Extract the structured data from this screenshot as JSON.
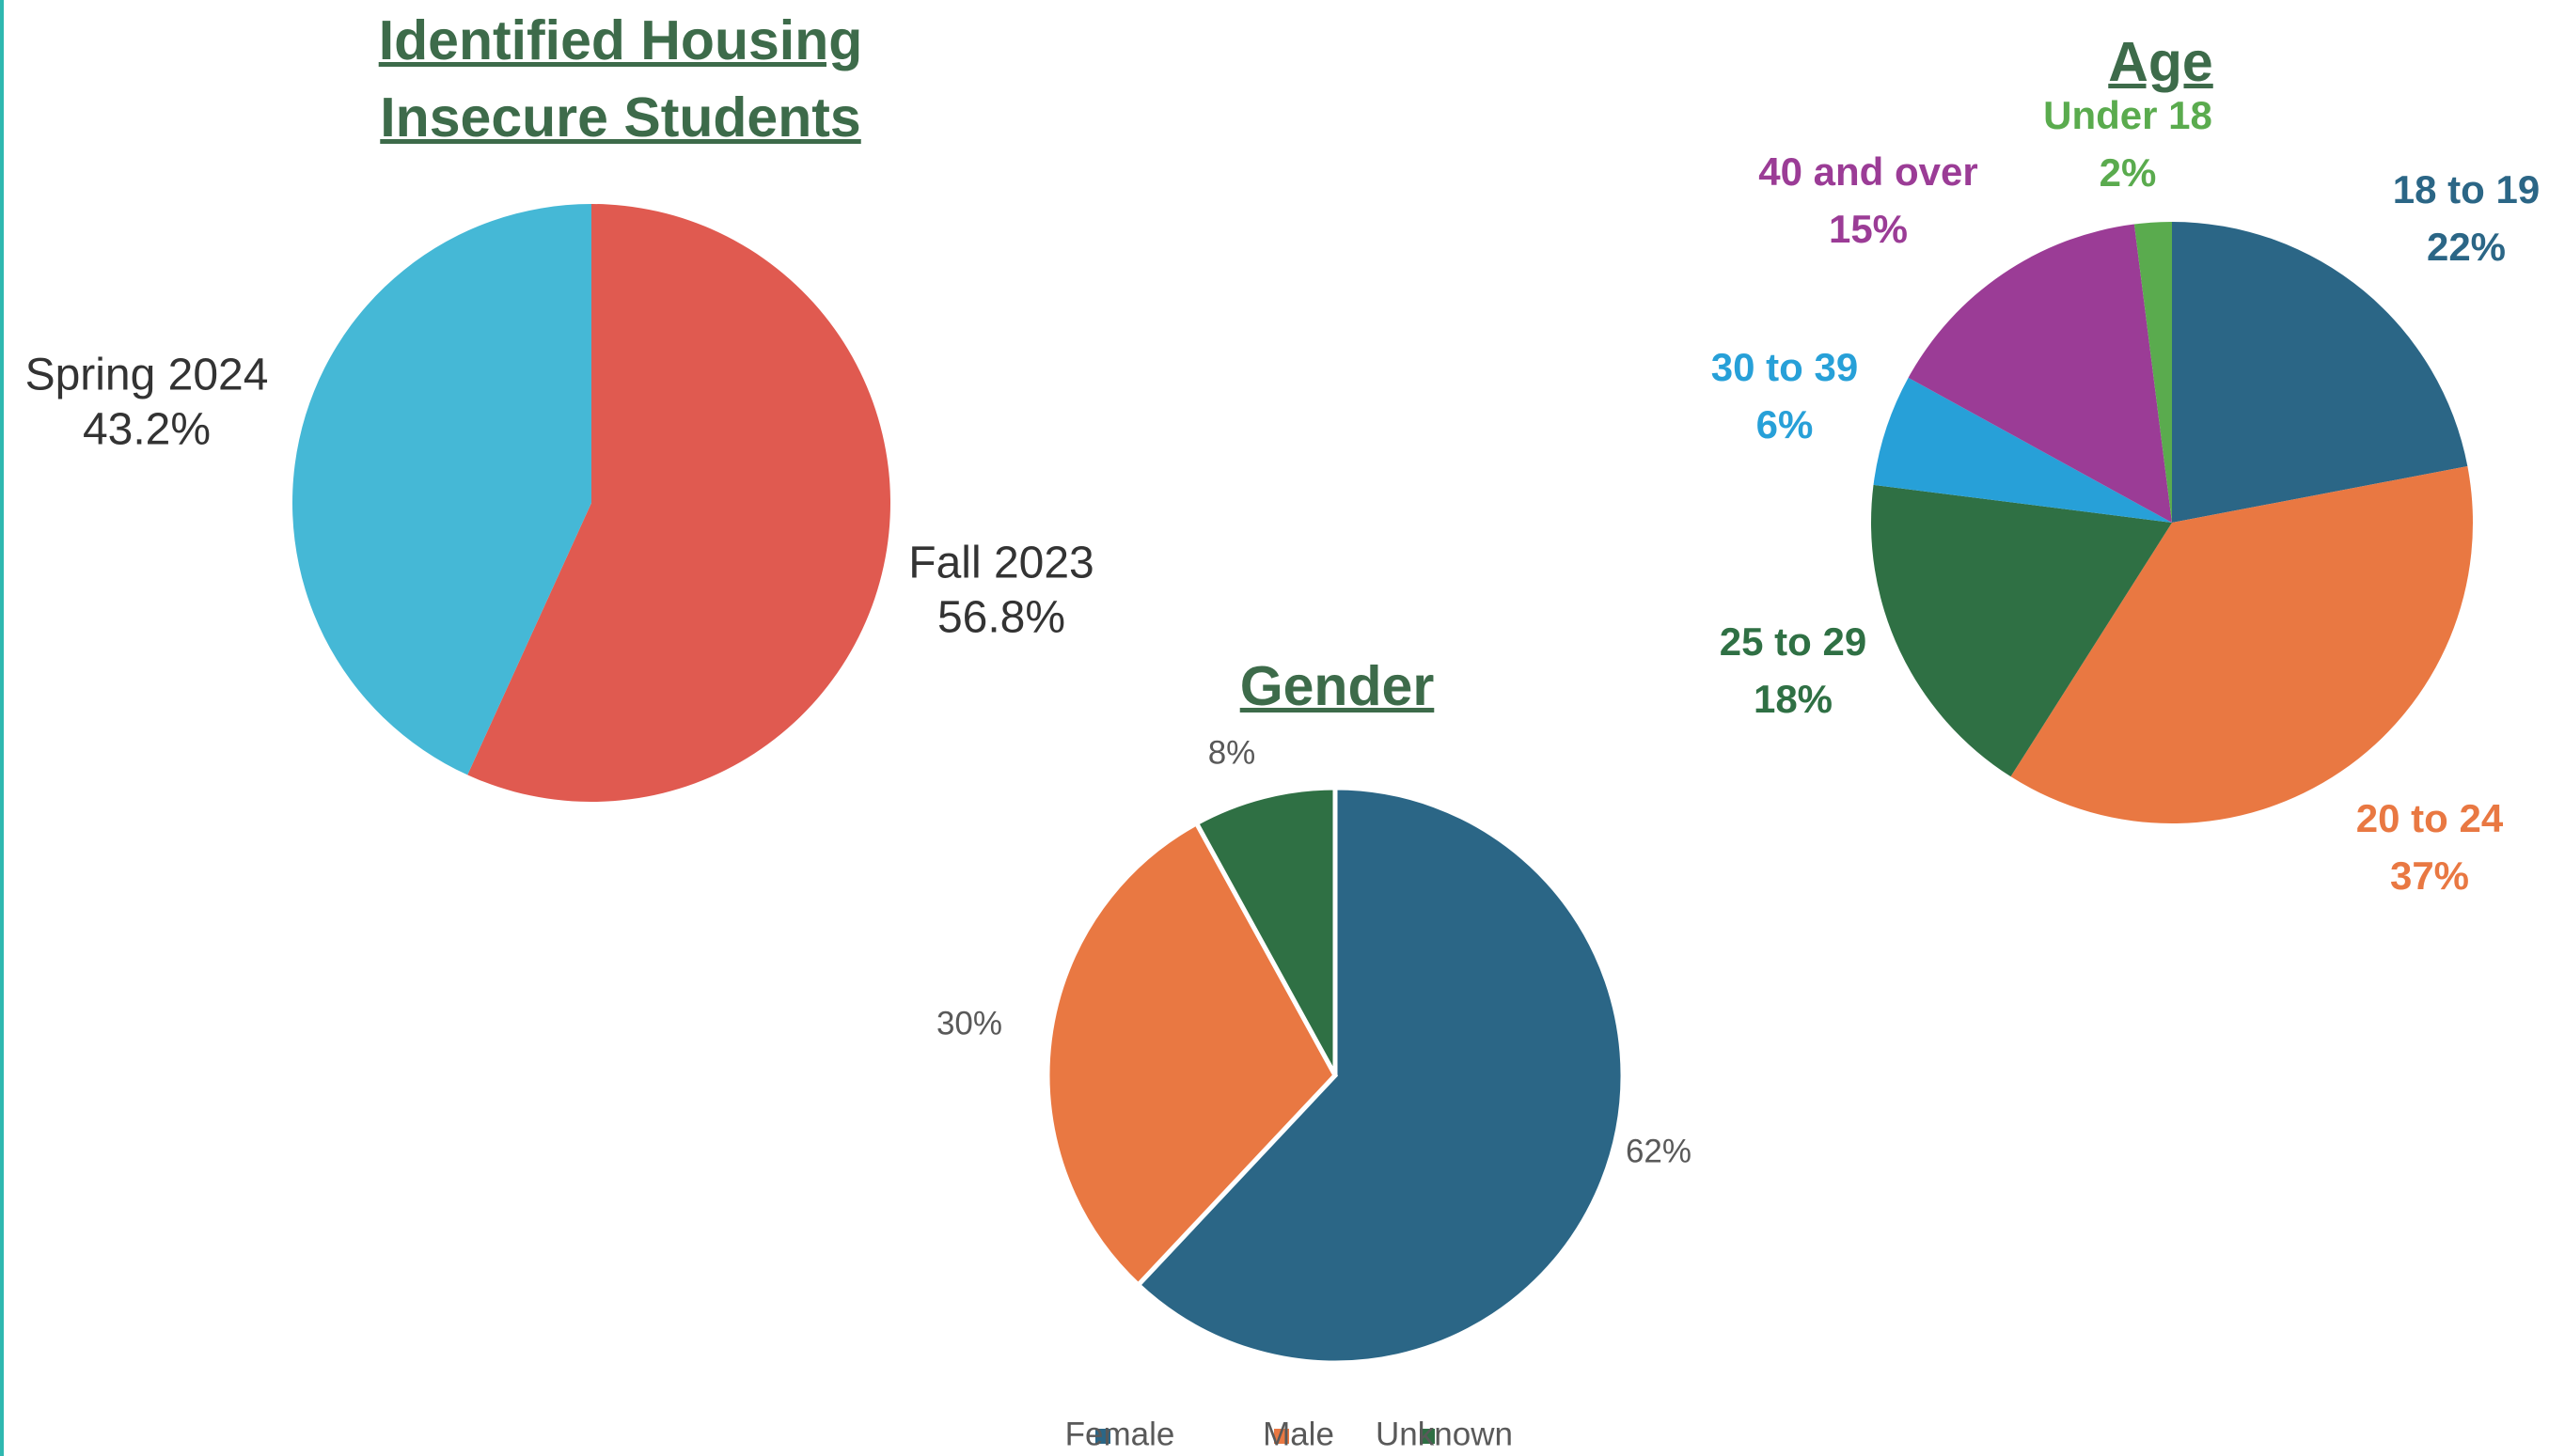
{
  "chart_data": [
    {
      "type": "pie",
      "title": "Identified Housing Insecure Students",
      "categories": [
        "Fall 2023",
        "Spring 2024"
      ],
      "values": [
        56.8,
        43.2
      ],
      "value_labels": [
        "56.8%",
        "43.2%"
      ],
      "colors": [
        "#e05a50",
        "#45b8d6"
      ],
      "legend": false
    },
    {
      "type": "pie",
      "title": "Gender",
      "categories": [
        "Female",
        "Male",
        "Unknown"
      ],
      "values": [
        62,
        30,
        8
      ],
      "value_labels": [
        "62%",
        "30%",
        "8%"
      ],
      "colors": [
        "#2b6686",
        "#e97842",
        "#2f7044"
      ],
      "legend": true,
      "legend_position": "bottom"
    },
    {
      "type": "pie",
      "title": "Age",
      "categories": [
        "18 to 19",
        "20 to 24",
        "25 to 29",
        "30 to 39",
        "40 and over",
        "Under 18"
      ],
      "values": [
        22,
        37,
        18,
        6,
        15,
        2
      ],
      "value_labels": [
        "22%",
        "37%",
        "18%",
        "6%",
        "15%",
        "2%"
      ],
      "colors": [
        "#2b6686",
        "#e97842",
        "#2f7044",
        "#27a0d8",
        "#9b3c96",
        "#5aab4e"
      ],
      "legend": false
    }
  ]
}
